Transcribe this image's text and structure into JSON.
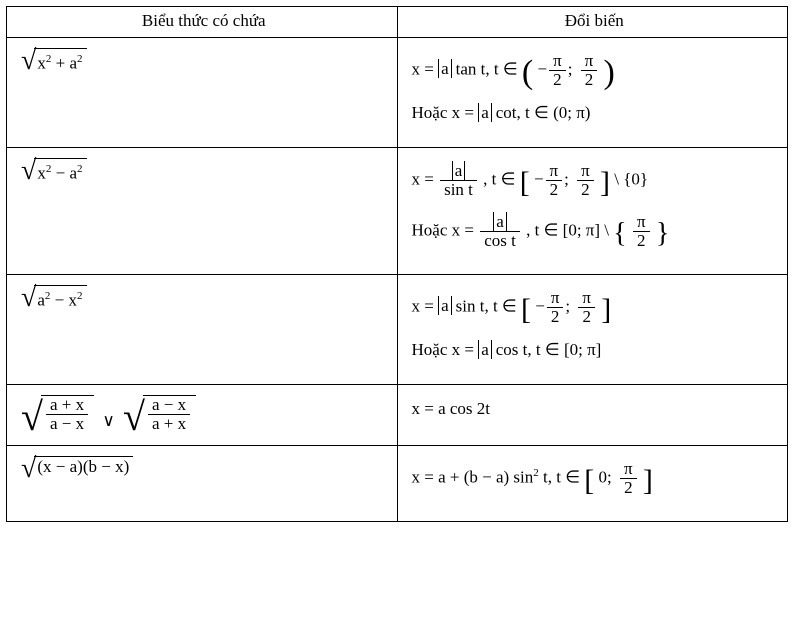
{
  "header": {
    "col1": "Biểu thức có chứa",
    "col2": "Đổi biến"
  },
  "row1": {
    "expr_term1": "x",
    "expr_exp1": "2",
    "expr_op": " + a",
    "expr_exp2": "2",
    "sub1_pre": "x = ",
    "sub1_a": "a",
    "sub1_fn": "tan t, t ∈ ",
    "sub1_int_a_num": "π",
    "sub1_int_a_den": "2",
    "sub1_int_b_num": "π",
    "sub1_int_b_den": "2",
    "sub2_lead": "Hoặc  x = ",
    "sub2_a": "a",
    "sub2_fn": "cot, t ∈ ",
    "sub2_int": "(0; π)"
  },
  "row2": {
    "expr_term1": "x",
    "expr_exp1": "2",
    "expr_op": " − a",
    "expr_exp2": "2",
    "sub1_pre": "x = ",
    "sub1_num": "a",
    "sub1_den": "sin t",
    "sub1_mid": ", t ∈ ",
    "sub1_int_a_num": "π",
    "sub1_int_a_den": "2",
    "sub1_int_b_num": "π",
    "sub1_int_b_den": "2",
    "sub1_excl": "{0}",
    "sub2_lead": "Hoặc  x = ",
    "sub2_num": "a",
    "sub2_den": "cos t",
    "sub2_mid": ", t ∈ ",
    "sub2_int": "[0; π]",
    "sub2_excl_num": "π",
    "sub2_excl_den": "2"
  },
  "row3": {
    "expr_term1": "a",
    "expr_exp1": "2",
    "expr_op": " − x",
    "expr_exp2": "2",
    "sub1_pre": "x = ",
    "sub1_a": "a",
    "sub1_fn": "sin t, t ∈ ",
    "sub1_int_a_num": "π",
    "sub1_int_a_den": "2",
    "sub1_int_b_num": "π",
    "sub1_int_b_den": "2",
    "sub2_lead": "Hoặc  x = ",
    "sub2_a": "a",
    "sub2_fn": "cos t, t ∈ ",
    "sub2_int": "[0; π]"
  },
  "row4": {
    "f1_num": "a + x",
    "f1_den": "a − x",
    "or": "∨",
    "f2_num": "a − x",
    "f2_den": "a + x",
    "sub": "x = a cos 2t"
  },
  "row5": {
    "expr": "(x − a)(b − x)",
    "sub_pre": "x = a + (b − a) sin",
    "sub_exp": "2",
    "sub_post": " t, t ∈ ",
    "int_a": "0",
    "int_b_num": "π",
    "int_b_den": "2"
  }
}
